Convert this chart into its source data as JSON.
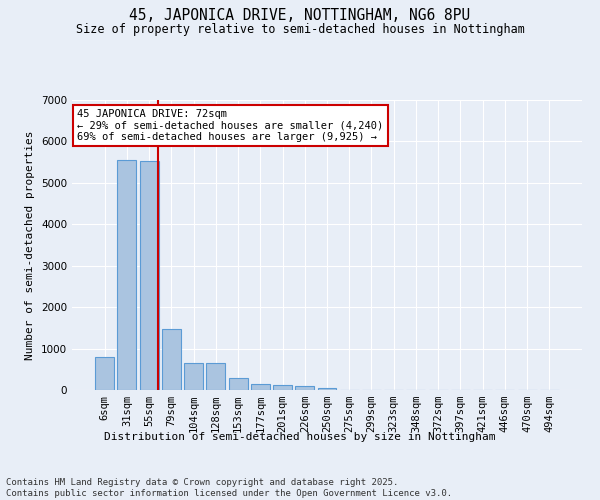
{
  "title": "45, JAPONICA DRIVE, NOTTINGHAM, NG6 8PU",
  "subtitle": "Size of property relative to semi-detached houses in Nottingham",
  "xlabel": "Distribution of semi-detached houses by size in Nottingham",
  "ylabel": "Number of semi-detached properties",
  "footer": "Contains HM Land Registry data © Crown copyright and database right 2025.\nContains public sector information licensed under the Open Government Licence v3.0.",
  "categories": [
    "6sqm",
    "31sqm",
    "55sqm",
    "79sqm",
    "104sqm",
    "128sqm",
    "153sqm",
    "177sqm",
    "201sqm",
    "226sqm",
    "250sqm",
    "275sqm",
    "299sqm",
    "323sqm",
    "348sqm",
    "372sqm",
    "397sqm",
    "421sqm",
    "446sqm",
    "470sqm",
    "494sqm"
  ],
  "values": [
    800,
    5550,
    5520,
    1470,
    650,
    650,
    290,
    140,
    110,
    90,
    60,
    0,
    0,
    0,
    0,
    0,
    0,
    0,
    0,
    0,
    0
  ],
  "bar_color": "#aac4e0",
  "bar_edge_color": "#5b9bd5",
  "background_color": "#e8eef7",
  "grid_color": "#ffffff",
  "vline_color": "#cc0000",
  "annotation_text": "45 JAPONICA DRIVE: 72sqm\n← 29% of semi-detached houses are smaller (4,240)\n69% of semi-detached houses are larger (9,925) →",
  "annotation_box_color": "#ffffff",
  "annotation_box_edge_color": "#cc0000",
  "ylim": [
    0,
    7000
  ],
  "yticks": [
    0,
    1000,
    2000,
    3000,
    4000,
    5000,
    6000,
    7000
  ],
  "title_fontsize": 10.5,
  "subtitle_fontsize": 8.5,
  "axis_label_fontsize": 8,
  "tick_fontsize": 7.5,
  "annotation_fontsize": 7.5,
  "footer_fontsize": 6.5
}
